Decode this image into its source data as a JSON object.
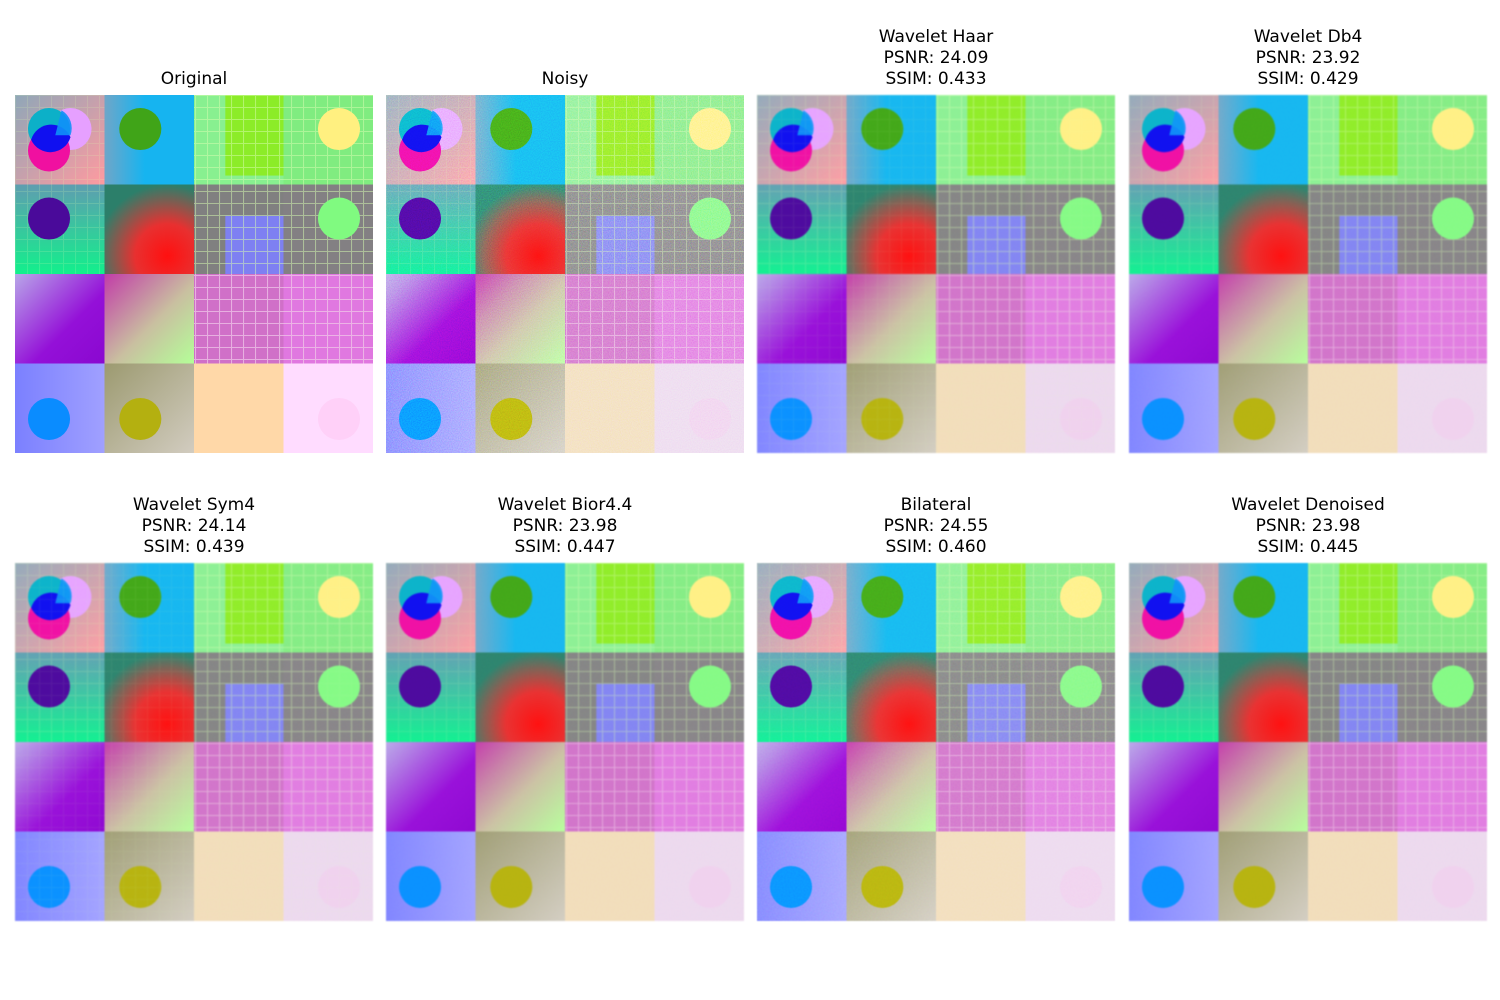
{
  "figure": {
    "panels": [
      {
        "title_lines": [
          "Original"
        ],
        "variant": "original"
      },
      {
        "title_lines": [
          "Noisy"
        ],
        "variant": "noisy"
      },
      {
        "title_lines": [
          "Wavelet Haar",
          "PSNR: 24.09",
          "SSIM: 0.433"
        ],
        "variant": "haar"
      },
      {
        "title_lines": [
          "Wavelet Db4",
          "PSNR: 23.92",
          "SSIM: 0.429"
        ],
        "variant": "db4"
      },
      {
        "title_lines": [
          "Wavelet Sym4",
          "PSNR: 24.14",
          "SSIM: 0.439"
        ],
        "variant": "sym4"
      },
      {
        "title_lines": [
          "Wavelet Bior4.4",
          "PSNR: 23.98",
          "SSIM: 0.447"
        ],
        "variant": "bior"
      },
      {
        "title_lines": [
          "Bilateral",
          "PSNR: 24.55",
          "SSIM: 0.460"
        ],
        "variant": "bilateral"
      },
      {
        "title_lines": [
          "Wavelet Denoised",
          "PSNR: 23.98",
          "SSIM: 0.445"
        ],
        "variant": "denoised"
      }
    ]
  }
}
